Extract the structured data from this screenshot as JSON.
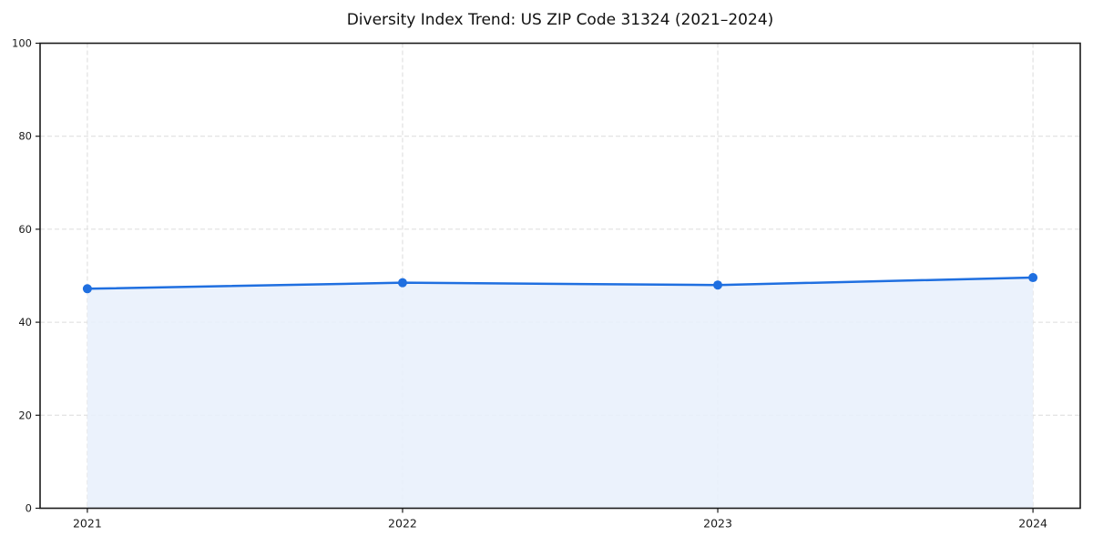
{
  "chart_data": {
    "type": "line",
    "title": "Diversity Index Trend: US ZIP Code 31324 (2021–2024)",
    "categories": [
      "2021",
      "2022",
      "2023",
      "2024"
    ],
    "series": [
      {
        "name": "Diversity Index",
        "values": [
          47.2,
          48.5,
          48.0,
          49.6
        ]
      }
    ],
    "xlabel": "",
    "ylabel": "",
    "ylim": [
      0,
      100
    ],
    "yticks": [
      0,
      20,
      40,
      60,
      80,
      100
    ],
    "grid": true,
    "grid_style": "dashed",
    "legend_position": "none",
    "area_fill": true,
    "marker": "circle",
    "colors": {
      "line": "#1f6fe0",
      "marker": "#1f6fe0",
      "area_fill": "#e8f0fc",
      "grid": "#dcdcdc",
      "spine": "#1a1a1a",
      "tick_label": "#1a1a1a",
      "title": "#111111",
      "background": "#ffffff"
    }
  }
}
